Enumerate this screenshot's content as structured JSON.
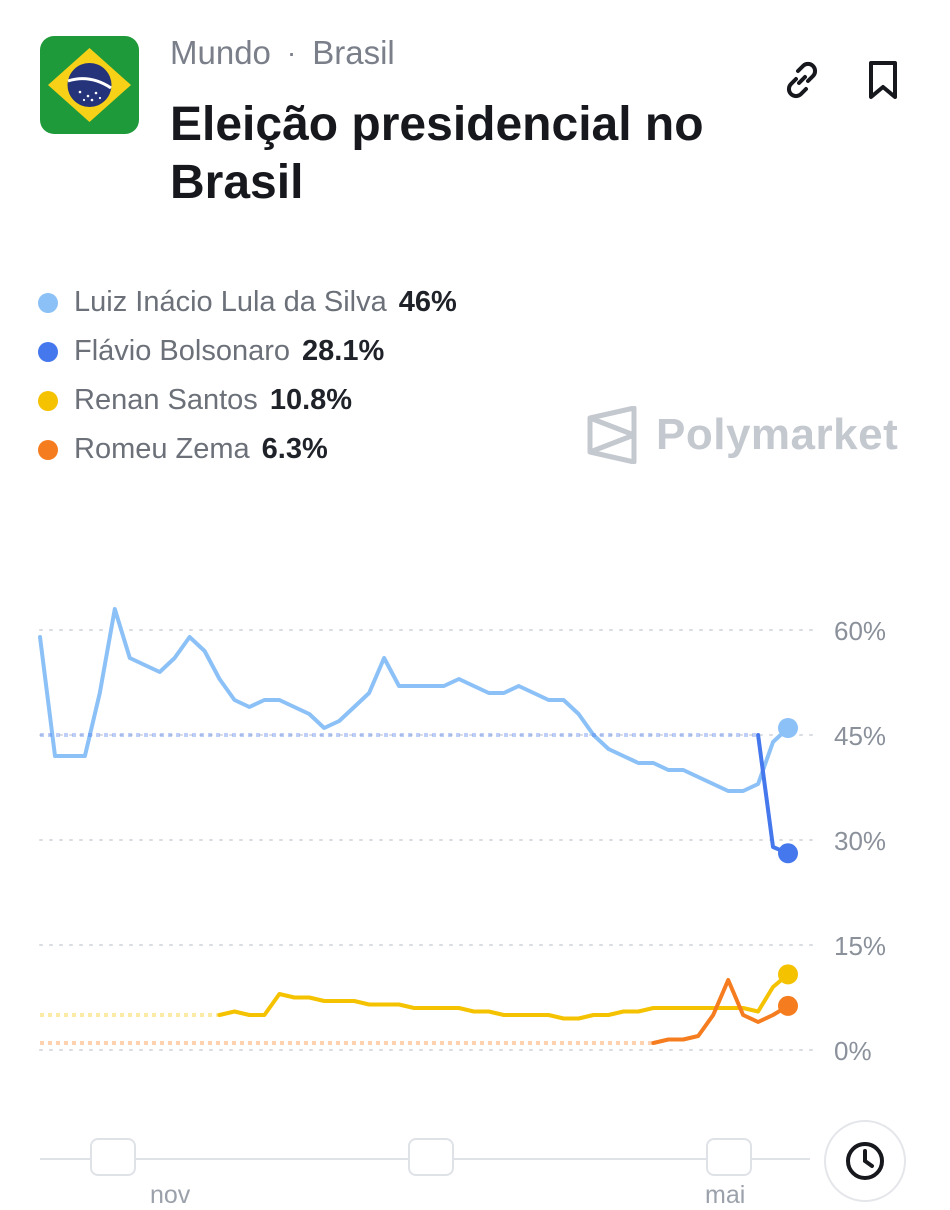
{
  "header": {
    "breadcrumb": [
      "Mundo",
      "Brasil"
    ],
    "breadcrumb_separator": "·",
    "title": "Eleição presidencial no Brasil",
    "flag_icon": "brazil-flag-icon"
  },
  "actions": {
    "link_icon": "link-icon",
    "bookmark_icon": "bookmark-icon"
  },
  "legend": [
    {
      "name": "Luiz Inácio Lula da Silva",
      "value": "46%",
      "color": "#8cc1f7"
    },
    {
      "name": "Flávio Bolsonaro",
      "value": "28.1%",
      "color": "#4577ed"
    },
    {
      "name": "Renan Santos",
      "value": "10.8%",
      "color": "#f5c200"
    },
    {
      "name": "Romeu Zema",
      "value": "6.3%",
      "color": "#f57d1f"
    }
  ],
  "watermark": "Polymarket",
  "timeline": {
    "labels": [
      "nov",
      "mai"
    ],
    "clock_icon": "clock-icon"
  },
  "chart_data": {
    "type": "line",
    "ylim": [
      0,
      60
    ],
    "yticks": [
      "60%",
      "45%",
      "30%",
      "15%",
      "0%"
    ],
    "ytick_values": [
      60,
      45,
      30,
      15,
      0
    ],
    "grid": true,
    "x": [
      0,
      2,
      4,
      6,
      8,
      10,
      12,
      14,
      16,
      18,
      20,
      22,
      24,
      26,
      28,
      30,
      32,
      34,
      36,
      38,
      40,
      42,
      44,
      46,
      48,
      50,
      52,
      54,
      56,
      58,
      60,
      62,
      64,
      66,
      68,
      70,
      72,
      74,
      76,
      78,
      80,
      82,
      84,
      86,
      88,
      90,
      92,
      94,
      96,
      98,
      100
    ],
    "series": [
      {
        "name": "Luiz Inácio Lula da Silva",
        "color": "#8cc1f7",
        "values": [
          59,
          42,
          42,
          42,
          51,
          63,
          56,
          55,
          54,
          56,
          59,
          57,
          53,
          50,
          49,
          50,
          50,
          49,
          48,
          46,
          47,
          49,
          51,
          56,
          52,
          52,
          52,
          52,
          53,
          52,
          51,
          51,
          52,
          51,
          50,
          50,
          48,
          45,
          43,
          42,
          41,
          41,
          40,
          40,
          39,
          38,
          37,
          37,
          38,
          44,
          46
        ]
      },
      {
        "name": "Flávio Bolsonaro",
        "color": "#4577ed",
        "values": [
          null,
          null,
          null,
          null,
          null,
          null,
          null,
          null,
          null,
          null,
          null,
          null,
          null,
          null,
          null,
          null,
          null,
          null,
          null,
          null,
          null,
          null,
          null,
          null,
          null,
          null,
          null,
          null,
          null,
          null,
          null,
          null,
          null,
          null,
          null,
          null,
          null,
          null,
          null,
          null,
          null,
          null,
          null,
          null,
          null,
          null,
          null,
          null,
          45,
          29,
          28.1
        ]
      },
      {
        "name": "Renan Santos",
        "color": "#f5c200",
        "values": [
          null,
          null,
          null,
          null,
          null,
          null,
          null,
          null,
          null,
          null,
          null,
          null,
          5,
          5.5,
          5,
          5,
          8,
          7.5,
          7.5,
          7,
          7,
          7,
          6.5,
          6.5,
          6.5,
          6,
          6,
          6,
          6,
          5.5,
          5.5,
          5,
          5,
          5,
          5,
          4.5,
          4.5,
          5,
          5,
          5.5,
          5.5,
          6,
          6,
          6,
          6,
          6,
          6,
          6,
          5.5,
          9,
          10.8
        ]
      },
      {
        "name": "Romeu Zema",
        "color": "#f57d1f",
        "values": [
          null,
          null,
          null,
          null,
          null,
          null,
          null,
          null,
          null,
          null,
          null,
          null,
          null,
          null,
          null,
          null,
          null,
          null,
          null,
          null,
          null,
          null,
          null,
          null,
          null,
          null,
          null,
          null,
          null,
          null,
          null,
          null,
          null,
          null,
          null,
          null,
          null,
          null,
          null,
          null,
          null,
          1,
          1.5,
          1.5,
          2,
          5,
          10,
          5,
          4,
          5,
          6.3
        ]
      }
    ]
  }
}
